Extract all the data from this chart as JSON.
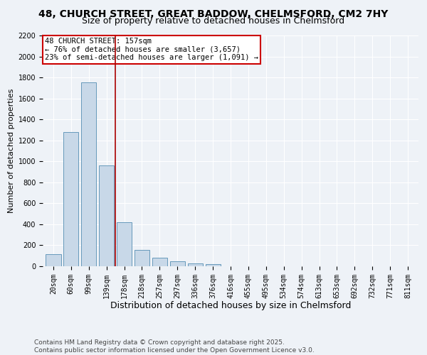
{
  "title": "48, CHURCH STREET, GREAT BADDOW, CHELMSFORD, CM2 7HY",
  "subtitle": "Size of property relative to detached houses in Chelmsford",
  "xlabel": "Distribution of detached houses by size in Chelmsford",
  "ylabel": "Number of detached properties",
  "categories": [
    "20sqm",
    "60sqm",
    "99sqm",
    "139sqm",
    "178sqm",
    "218sqm",
    "257sqm",
    "297sqm",
    "336sqm",
    "376sqm",
    "416sqm",
    "455sqm",
    "495sqm",
    "534sqm",
    "574sqm",
    "613sqm",
    "653sqm",
    "692sqm",
    "732sqm",
    "771sqm",
    "811sqm"
  ],
  "values": [
    115,
    1280,
    1750,
    960,
    420,
    155,
    80,
    45,
    30,
    18,
    0,
    0,
    0,
    0,
    0,
    0,
    0,
    0,
    0,
    0,
    0
  ],
  "bar_color": "#c8d8e8",
  "bar_edge_color": "#6699bb",
  "vline_x": 3.5,
  "vline_color": "#aa0000",
  "annotation_line1": "48 CHURCH STREET: 157sqm",
  "annotation_line2": "← 76% of detached houses are smaller (3,657)",
  "annotation_line3": "23% of semi-detached houses are larger (1,091) →",
  "annotation_box_color": "#ffffff",
  "annotation_box_edge": "#cc0000",
  "ylim": [
    0,
    2200
  ],
  "yticks": [
    0,
    200,
    400,
    600,
    800,
    1000,
    1200,
    1400,
    1600,
    1800,
    2000,
    2200
  ],
  "background_color": "#eef2f7",
  "grid_color": "#ffffff",
  "footer": "Contains HM Land Registry data © Crown copyright and database right 2025.\nContains public sector information licensed under the Open Government Licence v3.0.",
  "title_fontsize": 10,
  "subtitle_fontsize": 9,
  "xlabel_fontsize": 9,
  "ylabel_fontsize": 8,
  "tick_fontsize": 7,
  "annotation_fontsize": 7.5,
  "footer_fontsize": 6.5
}
